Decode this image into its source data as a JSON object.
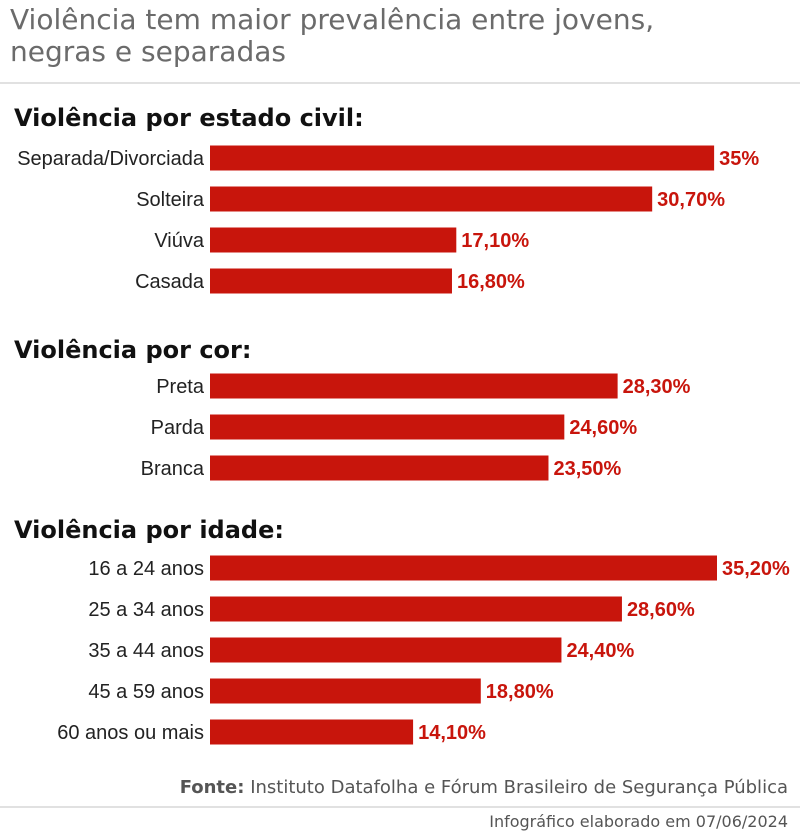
{
  "header": {
    "title_line1": "Violência tem maior prevalência entre jovens,",
    "title_line2": "negras e separadas"
  },
  "colors": {
    "bar": "#c8150c",
    "value_text": "#c8150c"
  },
  "chart_data": [
    {
      "type": "bar",
      "orientation": "horizontal",
      "title": "Violência por estado civil:",
      "categories": [
        "Separada/Divorciada",
        "Solteira",
        "Viúva",
        "Casada"
      ],
      "values": [
        35,
        30.7,
        17.1,
        16.8
      ],
      "value_labels": [
        "35%",
        "30,70%",
        "17,10%",
        "16,80%"
      ],
      "xlim": [
        0,
        35.2
      ]
    },
    {
      "type": "bar",
      "orientation": "horizontal",
      "title": "Violência por cor:",
      "categories": [
        "Preta",
        "Parda",
        "Branca"
      ],
      "values": [
        28.3,
        24.6,
        23.5
      ],
      "value_labels": [
        "28,30%",
        "24,60%",
        "23,50%"
      ],
      "xlim": [
        0,
        35.2
      ]
    },
    {
      "type": "bar",
      "orientation": "horizontal",
      "title": "Violência por idade:",
      "categories": [
        "16 a 24 anos",
        "25 a 34 anos",
        "35 a 44 anos",
        "45 a 59 anos",
        "60 anos ou mais"
      ],
      "values": [
        35.2,
        28.6,
        24.4,
        18.8,
        14.1
      ],
      "value_labels": [
        "35,20%",
        "28,60%",
        "24,40%",
        "18,80%",
        "14,10%"
      ],
      "xlim": [
        0,
        35.2
      ]
    }
  ],
  "footer": {
    "source_label": "Fonte:",
    "source_text": "Instituto Datafolha e Fórum Brasileiro de Segurança Pública",
    "credit": "Infográfico elaborado em 07/06/2024"
  }
}
